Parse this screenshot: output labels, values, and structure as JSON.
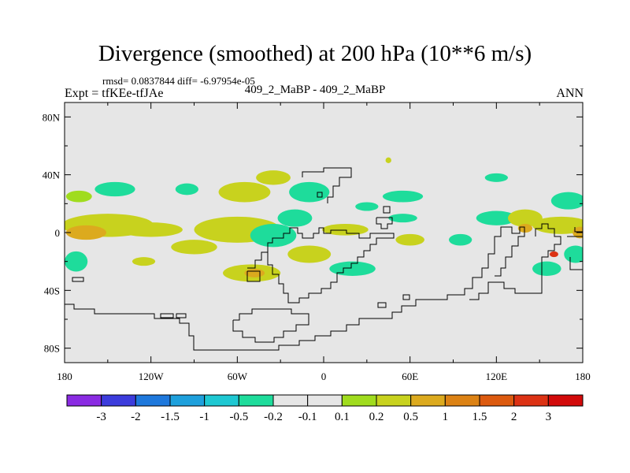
{
  "title": "Divergence (smoothed) at 200 hPa (10**6 m/s)",
  "stats": "rmsd= 0.0837844 diff= -6.97954e-05",
  "expt": "Expt = tfKEe-tfJAe",
  "cases": "409_2_MaBP - 409_2_MaBP",
  "season": "ANN",
  "colors": {
    "background_field": "#e6e6e6",
    "frame": "#000000"
  },
  "axes": {
    "lon_ticks": [
      "180",
      "120W",
      "60W",
      "0",
      "60E",
      "120E",
      "180"
    ],
    "lat_ticks": [
      "80N",
      "40N",
      "0",
      "40S",
      "80S"
    ]
  },
  "colorbar": {
    "colors": [
      "#8a2be2",
      "#3c3cdc",
      "#1e78dc",
      "#1ea0dc",
      "#1ec8d2",
      "#1edc9b",
      "#e6e6e6",
      "#e6e6e6",
      "#a0dc1e",
      "#c8d21e",
      "#dcaa1e",
      "#dc8214",
      "#dc5a0f",
      "#dc3214",
      "#d20a0a"
    ],
    "labels": [
      "-3",
      "-2",
      "-1.5",
      "-1",
      "-0.5",
      "-0.2",
      "-0.1",
      "0.1",
      "0.2",
      "0.5",
      "1",
      "1.5",
      "2",
      "3"
    ]
  },
  "chart_data": {
    "type": "heatmap",
    "title": "Divergence (smoothed) at 200 hPa (10**6 m/s)",
    "projection": "cylindrical equidistant",
    "xlim": [
      -180,
      180
    ],
    "ylim": [
      -90,
      90
    ],
    "x_ticks": [
      "180",
      "120W",
      "60W",
      "0",
      "60E",
      "120E",
      "180"
    ],
    "y_ticks": [
      "80N",
      "40N",
      "0",
      "40S",
      "80S"
    ],
    "levels": [
      -3,
      -2,
      -1.5,
      -1,
      -0.5,
      -0.2,
      -0.1,
      0.1,
      0.2,
      0.5,
      1,
      1.5,
      2,
      3
    ],
    "blobs": [
      {
        "lon": -170,
        "lat": 25,
        "rlon": 9,
        "rlat": 4,
        "value": 0.15
      },
      {
        "lon": -145,
        "lat": 30,
        "rlon": 14,
        "rlat": 5,
        "value": -0.25
      },
      {
        "lon": -95,
        "lat": 30,
        "rlon": 8,
        "rlat": 4,
        "value": -0.25
      },
      {
        "lon": -55,
        "lat": 28,
        "rlon": 18,
        "rlat": 7,
        "value": 0.2
      },
      {
        "lon": -35,
        "lat": 38,
        "rlon": 12,
        "rlat": 5,
        "value": 0.2
      },
      {
        "lon": -10,
        "lat": 28,
        "rlon": 14,
        "rlat": 7,
        "value": -0.25
      },
      {
        "lon": -150,
        "lat": 5,
        "rlon": 32,
        "rlat": 8,
        "value": 0.3
      },
      {
        "lon": -165,
        "lat": 0,
        "rlon": 14,
        "rlat": 5,
        "value": 0.6
      },
      {
        "lon": -120,
        "lat": 2,
        "rlon": 22,
        "rlat": 5,
        "value": 0.25
      },
      {
        "lon": -60,
        "lat": 2,
        "rlon": 30,
        "rlat": 9,
        "value": 0.25
      },
      {
        "lon": -35,
        "lat": -2,
        "rlon": 16,
        "rlat": 8,
        "value": -0.3
      },
      {
        "lon": -20,
        "lat": 10,
        "rlon": 12,
        "rlat": 6,
        "value": -0.25
      },
      {
        "lon": -90,
        "lat": -10,
        "rlon": 16,
        "rlat": 5,
        "value": 0.2
      },
      {
        "lon": -50,
        "lat": -28,
        "rlon": 20,
        "rlat": 6,
        "value": 0.25
      },
      {
        "lon": -48,
        "lat": -28,
        "rlon": 7,
        "rlat": 3,
        "value": 0.6
      },
      {
        "lon": -172,
        "lat": -20,
        "rlon": 8,
        "rlat": 7,
        "value": -0.25
      },
      {
        "lon": -125,
        "lat": -20,
        "rlon": 8,
        "rlat": 3,
        "value": 0.2
      },
      {
        "lon": -10,
        "lat": -15,
        "rlon": 15,
        "rlat": 6,
        "value": 0.25
      },
      {
        "lon": 20,
        "lat": -25,
        "rlon": 16,
        "rlat": 5,
        "value": -0.25
      },
      {
        "lon": 15,
        "lat": 2,
        "rlon": 16,
        "rlat": 4,
        "value": 0.25
      },
      {
        "lon": 30,
        "lat": 18,
        "rlon": 8,
        "rlat": 3,
        "value": -0.25
      },
      {
        "lon": 55,
        "lat": 25,
        "rlon": 14,
        "rlat": 4,
        "value": -0.25
      },
      {
        "lon": 55,
        "lat": 10,
        "rlon": 10,
        "rlat": 3,
        "value": -0.25
      },
      {
        "lon": 60,
        "lat": -5,
        "rlon": 10,
        "rlat": 4,
        "value": 0.2
      },
      {
        "lon": 95,
        "lat": -5,
        "rlon": 8,
        "rlat": 4,
        "value": -0.25
      },
      {
        "lon": 120,
        "lat": 10,
        "rlon": 14,
        "rlat": 5,
        "value": -0.25
      },
      {
        "lon": 140,
        "lat": 10,
        "rlon": 12,
        "rlat": 6,
        "value": 0.2
      },
      {
        "lon": 140,
        "lat": 3,
        "rlon": 5,
        "rlat": 3,
        "value": 0.6
      },
      {
        "lon": 170,
        "lat": 22,
        "rlon": 12,
        "rlat": 6,
        "value": -0.25
      },
      {
        "lon": 165,
        "lat": 5,
        "rlon": 20,
        "rlat": 6,
        "value": 0.25
      },
      {
        "lon": 178,
        "lat": 0,
        "rlon": 5,
        "rlat": 4,
        "value": 0.6
      },
      {
        "lon": 155,
        "lat": -25,
        "rlon": 10,
        "rlat": 5,
        "value": -0.25
      },
      {
        "lon": 175,
        "lat": -15,
        "rlon": 8,
        "rlat": 6,
        "value": -0.25
      },
      {
        "lon": 160,
        "lat": -15,
        "rlon": 3,
        "rlat": 2,
        "value": 2.5
      },
      {
        "lon": 120,
        "lat": 38,
        "rlon": 8,
        "rlat": 3,
        "value": -0.25
      },
      {
        "lon": 45,
        "lat": 50,
        "rlon": 2,
        "rlat": 2,
        "value": 0.2
      }
    ]
  }
}
